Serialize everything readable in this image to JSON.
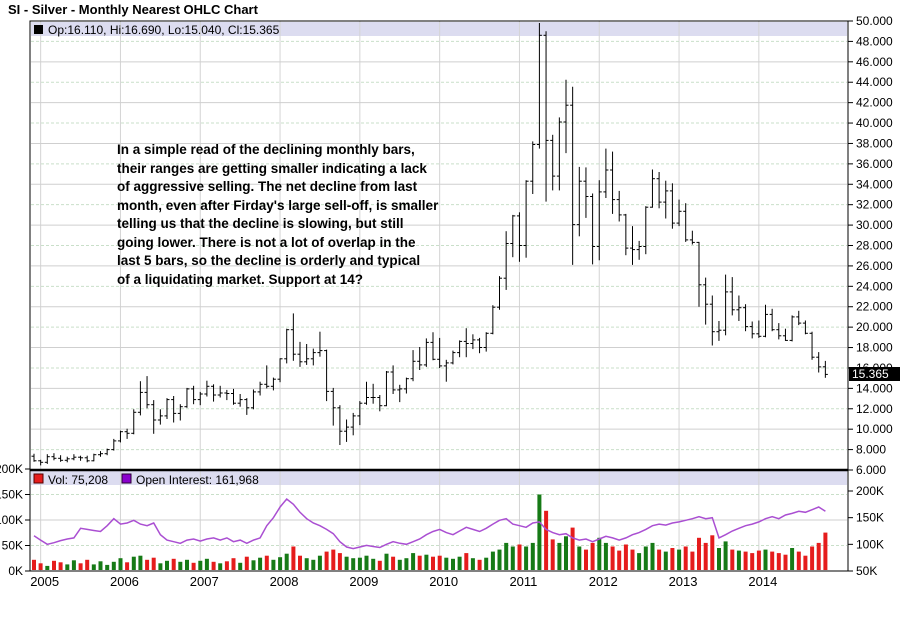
{
  "title": "SI - Silver - Monthly Nearest OHLC Chart",
  "legend": {
    "ohlc": "Op:16.110, Hi:16.690, Lo:15.040, Cl:15.365",
    "volume": "Vol: 75,208",
    "open_interest": "Open Interest: 161,968"
  },
  "annotation": {
    "text": "In a simple read of the declining monthly bars,\ntheir ranges are getting smaller indicating a lack\nof aggressive selling.  The net decline from last\nmonth, even after Firday's large sell-off, is smaller\ntelling us that the decline is slowing, but still\ngoing lower.  There is not a lot of overlap in the\nlast 5 bars, so the decline is orderly and typical\nof a liquidating market.  Support at 14?"
  },
  "price_marker": "15.365",
  "colors": {
    "bar": "#000000",
    "volume_up": "#167a16",
    "volume_down": "#e51c1c",
    "open_interest_line": "#aa4fd2",
    "legend_strip_bg": "#dcdcf0",
    "grid_solid": "#cfcfcf",
    "grid_dashed": "#c9dfc9",
    "marker_bg": "#000000",
    "marker_text": "#ffffff"
  },
  "chart_data": {
    "type": "ohlc+volume+line",
    "title": "SI - Silver - Monthly Nearest OHLC Chart",
    "periodicity": "monthly",
    "start_month": "2004-12",
    "end_month": "2014-11",
    "last_bar": {
      "open": 16.11,
      "high": 16.69,
      "low": 15.04,
      "close": 15.365,
      "volume": 75208,
      "open_interest": 161968
    },
    "ohlc": [
      [
        7.35,
        7.6,
        6.8,
        6.9
      ],
      [
        6.9,
        7.0,
        6.45,
        6.75
      ],
      [
        6.75,
        7.55,
        6.6,
        7.3
      ],
      [
        7.3,
        7.65,
        6.95,
        7.15
      ],
      [
        7.15,
        7.45,
        6.8,
        6.95
      ],
      [
        6.95,
        7.3,
        6.75,
        7.1
      ],
      [
        7.1,
        7.55,
        6.95,
        7.25
      ],
      [
        7.25,
        7.4,
        6.9,
        7.2
      ],
      [
        7.2,
        7.4,
        6.75,
        6.9
      ],
      [
        6.9,
        7.6,
        6.85,
        7.5
      ],
      [
        7.5,
        7.85,
        7.3,
        7.6
      ],
      [
        7.6,
        8.1,
        7.45,
        8.0
      ],
      [
        8.0,
        9.05,
        7.9,
        8.85
      ],
      [
        8.85,
        9.85,
        8.7,
        9.75
      ],
      [
        9.75,
        10.05,
        9.05,
        9.6
      ],
      [
        9.6,
        11.95,
        9.5,
        11.65
      ],
      [
        11.65,
        14.7,
        11.35,
        13.6
      ],
      [
        13.6,
        15.2,
        12.05,
        12.4
      ],
      [
        12.4,
        12.85,
        9.55,
        10.9
      ],
      [
        10.9,
        11.95,
        10.45,
        11.3
      ],
      [
        11.3,
        13.05,
        11.0,
        12.9
      ],
      [
        12.9,
        13.25,
        10.65,
        11.55
      ],
      [
        11.55,
        12.45,
        10.85,
        12.2
      ],
      [
        12.2,
        14.05,
        12.1,
        13.95
      ],
      [
        13.95,
        14.25,
        12.45,
        12.9
      ],
      [
        12.9,
        13.65,
        12.35,
        13.45
      ],
      [
        13.45,
        14.75,
        13.2,
        14.2
      ],
      [
        14.2,
        14.4,
        12.7,
        13.35
      ],
      [
        13.35,
        14.25,
        13.1,
        13.55
      ],
      [
        13.55,
        13.85,
        12.85,
        13.5
      ],
      [
        13.5,
        13.95,
        12.4,
        12.55
      ],
      [
        12.55,
        13.45,
        12.2,
        12.9
      ],
      [
        12.9,
        13.05,
        11.4,
        12.1
      ],
      [
        12.1,
        13.9,
        11.95,
        13.65
      ],
      [
        13.65,
        14.65,
        13.3,
        14.4
      ],
      [
        14.4,
        16.25,
        14.0,
        14.2
      ],
      [
        14.2,
        15.05,
        13.8,
        14.9
      ],
      [
        14.9,
        16.95,
        14.6,
        16.9
      ],
      [
        16.9,
        19.85,
        16.45,
        19.75
      ],
      [
        19.75,
        21.35,
        16.7,
        17.35
      ],
      [
        17.35,
        18.55,
        16.1,
        16.6
      ],
      [
        16.6,
        18.35,
        16.3,
        16.9
      ],
      [
        16.9,
        17.9,
        16.25,
        17.5
      ],
      [
        17.5,
        19.55,
        17.1,
        17.7
      ],
      [
        17.7,
        17.8,
        12.75,
        13.7
      ],
      [
        13.7,
        14.05,
        10.35,
        12.1
      ],
      [
        12.1,
        12.35,
        8.45,
        9.8
      ],
      [
        9.8,
        10.95,
        8.75,
        10.2
      ],
      [
        10.2,
        11.6,
        9.4,
        11.3
      ],
      [
        11.3,
        12.75,
        10.4,
        12.55
      ],
      [
        12.55,
        14.65,
        12.4,
        13.1
      ],
      [
        13.1,
        14.45,
        12.5,
        13.1
      ],
      [
        13.1,
        13.35,
        11.75,
        12.3
      ],
      [
        12.3,
        15.7,
        12.25,
        15.6
      ],
      [
        15.6,
        16.25,
        13.45,
        13.85
      ],
      [
        13.85,
        14.35,
        12.65,
        13.95
      ],
      [
        13.95,
        15.05,
        13.5,
        14.95
      ],
      [
        14.95,
        17.75,
        14.7,
        16.65
      ],
      [
        16.65,
        18.05,
        15.8,
        16.3
      ],
      [
        16.3,
        18.9,
        16.1,
        18.5
      ],
      [
        18.5,
        19.5,
        16.75,
        16.85
      ],
      [
        16.85,
        18.95,
        16.0,
        16.2
      ],
      [
        16.2,
        16.8,
        14.65,
        16.5
      ],
      [
        16.5,
        17.7,
        16.35,
        17.5
      ],
      [
        17.5,
        18.7,
        17.05,
        18.6
      ],
      [
        18.6,
        19.9,
        17.05,
        18.4
      ],
      [
        18.4,
        19.3,
        17.85,
        18.75
      ],
      [
        18.75,
        18.95,
        17.45,
        18.0
      ],
      [
        18.0,
        19.5,
        17.6,
        19.4
      ],
      [
        19.4,
        22.15,
        19.3,
        21.95
      ],
      [
        21.95,
        25.0,
        21.7,
        24.8
      ],
      [
        24.8,
        29.4,
        23.65,
        28.2
      ],
      [
        28.2,
        31.0,
        26.85,
        30.9
      ],
      [
        30.9,
        31.25,
        26.4,
        28.0
      ],
      [
        28.0,
        34.4,
        26.8,
        34.3
      ],
      [
        34.3,
        38.2,
        33.05,
        37.9
      ],
      [
        37.9,
        49.8,
        37.5,
        48.6
      ],
      [
        48.6,
        49.0,
        32.3,
        38.3
      ],
      [
        38.3,
        38.85,
        33.4,
        34.8
      ],
      [
        34.8,
        40.55,
        33.4,
        40.1
      ],
      [
        40.1,
        44.25,
        37.05,
        41.75
      ],
      [
        41.75,
        43.55,
        26.1,
        30.05
      ],
      [
        30.05,
        35.7,
        28.9,
        34.3
      ],
      [
        34.3,
        35.65,
        30.7,
        32.8
      ],
      [
        32.8,
        33.1,
        26.15,
        27.9
      ],
      [
        27.9,
        34.4,
        26.55,
        33.25
      ],
      [
        33.25,
        37.5,
        32.65,
        35.4
      ],
      [
        35.4,
        37.2,
        31.1,
        32.5
      ],
      [
        32.5,
        33.35,
        30.35,
        31.0
      ],
      [
        31.0,
        31.1,
        27.05,
        27.75
      ],
      [
        27.75,
        29.9,
        26.1,
        27.6
      ],
      [
        27.6,
        28.45,
        26.6,
        27.9
      ],
      [
        27.9,
        31.85,
        27.15,
        31.75
      ],
      [
        31.75,
        35.45,
        31.7,
        34.55
      ],
      [
        34.55,
        35.2,
        31.65,
        32.25
      ],
      [
        32.25,
        34.35,
        30.65,
        33.35
      ],
      [
        33.35,
        34.1,
        29.65,
        30.2
      ],
      [
        30.2,
        32.5,
        29.9,
        31.35
      ],
      [
        31.35,
        32.15,
        28.35,
        28.55
      ],
      [
        28.55,
        29.45,
        28.1,
        28.3
      ],
      [
        28.3,
        28.35,
        22.0,
        24.15
      ],
      [
        24.15,
        24.85,
        20.25,
        22.25
      ],
      [
        22.25,
        23.1,
        18.2,
        19.55
      ],
      [
        19.55,
        20.6,
        18.65,
        19.7
      ],
      [
        19.7,
        25.15,
        19.2,
        23.45
      ],
      [
        23.45,
        24.9,
        21.15,
        21.7
      ],
      [
        21.7,
        23.1,
        20.6,
        21.9
      ],
      [
        21.9,
        22.25,
        19.6,
        20.05
      ],
      [
        20.05,
        20.55,
        18.9,
        19.35
      ],
      [
        19.35,
        20.65,
        18.95,
        19.1
      ],
      [
        19.1,
        22.2,
        19.0,
        21.25
      ],
      [
        21.25,
        21.8,
        19.6,
        19.75
      ],
      [
        19.75,
        20.4,
        18.8,
        19.15
      ],
      [
        19.15,
        19.85,
        18.65,
        18.7
      ],
      [
        18.7,
        21.15,
        18.6,
        21.0
      ],
      [
        21.0,
        21.6,
        20.2,
        20.4
      ],
      [
        20.4,
        20.65,
        19.3,
        19.4
      ],
      [
        19.4,
        19.55,
        16.8,
        17.05
      ],
      [
        17.05,
        17.55,
        15.55,
        16.1
      ],
      [
        16.11,
        16.69,
        15.04,
        15.365
      ]
    ],
    "volume_k": [
      22,
      15,
      10,
      20,
      17,
      13,
      21,
      15,
      22,
      13,
      19,
      12,
      18,
      25,
      17,
      28,
      30,
      22,
      26,
      15,
      20,
      24,
      18,
      22,
      16,
      20,
      24,
      18,
      15,
      19,
      25,
      16,
      28,
      21,
      26,
      30,
      22,
      27,
      34,
      48,
      30,
      25,
      22,
      30,
      38,
      42,
      35,
      28,
      25,
      26,
      30,
      24,
      20,
      34,
      28,
      22,
      25,
      35,
      30,
      32,
      28,
      30,
      26,
      24,
      28,
      35,
      25,
      22,
      26,
      38,
      42,
      55,
      48,
      52,
      48,
      55,
      150,
      118,
      62,
      55,
      68,
      85,
      48,
      42,
      55,
      65,
      55,
      48,
      40,
      52,
      42,
      35,
      48,
      55,
      42,
      38,
      45,
      42,
      48,
      38,
      65,
      55,
      70,
      45,
      58,
      42,
      40,
      38,
      35,
      40,
      42,
      38,
      35,
      32,
      45,
      38,
      30,
      48,
      55,
      75.208
    ],
    "open_interest_k": [
      116,
      108,
      100,
      103,
      107,
      110,
      112,
      130,
      128,
      126,
      124,
      135,
      148,
      138,
      140,
      145,
      138,
      135,
      140,
      118,
      108,
      105,
      102,
      108,
      110,
      106,
      110,
      112,
      108,
      112,
      105,
      108,
      102,
      108,
      112,
      135,
      150,
      170,
      185,
      175,
      160,
      148,
      140,
      135,
      128,
      120,
      105,
      95,
      92,
      95,
      98,
      96,
      94,
      100,
      105,
      102,
      100,
      105,
      110,
      118,
      124,
      128,
      122,
      118,
      125,
      132,
      128,
      124,
      130,
      138,
      145,
      148,
      138,
      135,
      132,
      140,
      142,
      128,
      122,
      118,
      120,
      112,
      108,
      110,
      105,
      110,
      115,
      112,
      108,
      112,
      118,
      122,
      128,
      135,
      138,
      136,
      140,
      142,
      145,
      148,
      152,
      148,
      150,
      112,
      118,
      125,
      130,
      135,
      138,
      142,
      148,
      152,
      148,
      155,
      158,
      162,
      160,
      165,
      170,
      161.968
    ],
    "price_axis": {
      "side": "right",
      "min": 6,
      "max": 50,
      "step": 2,
      "tick_labels": [
        "50.000",
        "48.000",
        "46.000",
        "44.000",
        "42.000",
        "40.000",
        "38.000",
        "36.000",
        "34.000",
        "32.000",
        "30.000",
        "28.000",
        "26.000",
        "24.000",
        "22.000",
        "20.000",
        "18.000",
        "16.000",
        "14.000",
        "12.000",
        "10.000",
        "8.000",
        "6.000"
      ]
    },
    "volume_axis": {
      "side": "left",
      "min_k": 0,
      "max_k": 200,
      "tick_labels": [
        "200K",
        "150K",
        "100K",
        "50K",
        "0K"
      ]
    },
    "open_interest_axis": {
      "side": "right",
      "min_k": 50,
      "tick_labels": [
        "200K",
        "150K",
        "100K",
        "50K"
      ]
    },
    "x_axis": {
      "year_labels": [
        "2005",
        "2006",
        "2007",
        "2008",
        "2009",
        "2010",
        "2011",
        "2012",
        "2013",
        "2014"
      ]
    }
  }
}
